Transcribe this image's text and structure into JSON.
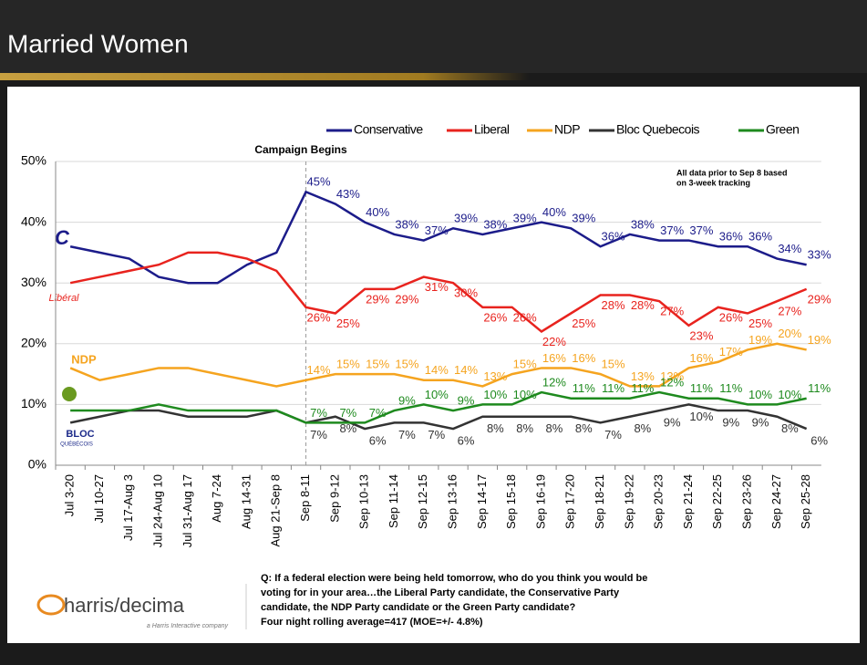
{
  "slide_title": "Married Women",
  "chart_data": {
    "type": "line",
    "annotations": [
      "Campaign Begins",
      "All data prior to Sep 8 based",
      "on 3-week tracking"
    ],
    "categories": [
      "Jul 3-20",
      "Jul 10-27",
      "Jul 17-Aug 3",
      "Jul 24-Aug 10",
      "Jul 31-Aug 17",
      "Aug 7-24",
      "Aug 14-31",
      "Aug 21-Sep 8",
      "Sep 8-11",
      "Sep 9-12",
      "Sep 10-13",
      "Sep 11-14",
      "Sep 12-15",
      "Sep 13-16",
      "Sep 14-17",
      "Sep 15-18",
      "Sep 16-19",
      "Sep 17-20",
      "Sep 18-21",
      "Sep 19-22",
      "Sep 20-23",
      "Sep 21-24",
      "Sep 22-25",
      "Sep 23-26",
      "Sep 24-27",
      "Sep 25-28"
    ],
    "ylim": [
      0,
      50
    ],
    "yticks": [
      {
        "value": 0,
        "label": "0%"
      },
      {
        "value": 10,
        "label": "10%"
      },
      {
        "value": 20,
        "label": "20%"
      },
      {
        "value": 30,
        "label": "30%"
      },
      {
        "value": 40,
        "label": "40%"
      },
      {
        "value": 50,
        "label": "50%"
      }
    ],
    "grid": true,
    "legend": "top",
    "series": [
      {
        "name": "Conservative",
        "color": "#1c1c8a",
        "values": [
          36,
          35,
          34,
          31,
          30,
          30,
          33,
          35,
          45,
          43,
          40,
          38,
          37,
          39,
          38,
          39,
          40,
          39,
          36,
          38,
          37,
          37,
          36,
          36,
          34,
          33
        ],
        "value_labels": [
          null,
          null,
          null,
          null,
          null,
          null,
          null,
          null,
          "45%",
          "43%",
          "40%",
          "38%",
          "37%",
          "39%",
          "38%",
          "39%",
          "40%",
          "39%",
          "36%",
          "38%",
          "37%",
          "37%",
          "36%",
          "36%",
          "34%",
          "33%"
        ]
      },
      {
        "name": "Liberal",
        "color": "#e8231e",
        "values": [
          30,
          31,
          32,
          33,
          35,
          35,
          34,
          32,
          26,
          25,
          29,
          29,
          31,
          30,
          26,
          26,
          22,
          25,
          28,
          28,
          27,
          23,
          26,
          25,
          27,
          29
        ],
        "value_labels": [
          null,
          null,
          null,
          null,
          null,
          null,
          null,
          null,
          "26%",
          "25%",
          "29%",
          "29%",
          "31%",
          "30%",
          "26%",
          "26%",
          "22%",
          "25%",
          "28%",
          "28%",
          "27%",
          "23%",
          "26%",
          "25%",
          "27%",
          "29%"
        ]
      },
      {
        "name": "NDP",
        "color": "#f5a41f",
        "values": [
          16,
          14,
          15,
          16,
          16,
          15,
          14,
          13,
          14,
          15,
          15,
          15,
          14,
          14,
          13,
          15,
          16,
          16,
          15,
          13,
          13,
          16,
          17,
          19,
          20,
          19
        ],
        "value_labels": [
          null,
          null,
          null,
          null,
          null,
          null,
          null,
          null,
          "14%",
          "15%",
          "15%",
          "15%",
          "14%",
          "14%",
          "13%",
          "15%",
          "16%",
          "16%",
          "15%",
          "13%",
          "13%",
          "16%",
          "17%",
          "19%",
          "20%",
          "19%"
        ]
      },
      {
        "name": "Bloc Quebecois",
        "color": "#333333",
        "values": [
          7,
          8,
          9,
          9,
          8,
          8,
          8,
          9,
          7,
          8,
          6,
          7,
          7,
          6,
          8,
          8,
          8,
          8,
          7,
          8,
          9,
          10,
          9,
          9,
          8,
          6
        ],
        "value_labels": [
          null,
          null,
          null,
          null,
          null,
          null,
          null,
          null,
          "7%",
          "8%",
          "6%",
          "7%",
          "7%",
          "6%",
          "8%",
          "8%",
          "8%",
          "8%",
          "7%",
          "8%",
          "9%",
          "10%",
          "9%",
          "9%",
          "8%",
          "6%"
        ]
      },
      {
        "name": "Green",
        "color": "#1e8a1e",
        "values": [
          9,
          9,
          9,
          10,
          9,
          9,
          9,
          9,
          7,
          7,
          7,
          9,
          10,
          9,
          10,
          10,
          12,
          11,
          11,
          11,
          12,
          11,
          11,
          10,
          10,
          11
        ],
        "value_labels": [
          null,
          null,
          null,
          null,
          null,
          null,
          null,
          null,
          "7%",
          "7%",
          "7%",
          "9%",
          "10%",
          "9%",
          "10%",
          "10%",
          "12%",
          "11%",
          "11%",
          "11%",
          "12%",
          "11%",
          "11%",
          "10%",
          "10%",
          "11%"
        ]
      }
    ]
  },
  "party_logos": [
    "C",
    "Libéral",
    "NDP",
    "BLOC",
    "QUÉBÉCOIS"
  ],
  "footer": {
    "logo": "harris/decima",
    "tagline": "a Harris Interactive company",
    "question": [
      "Q: If a federal election were being held tomorrow, who do you think you would be",
      "voting for in your area…the Liberal Party candidate, the Conservative Party",
      "candidate, the NDP Party candidate or the Green Party candidate?",
      "Four night rolling average=417 (MOE=+/- 4.8%)"
    ]
  }
}
